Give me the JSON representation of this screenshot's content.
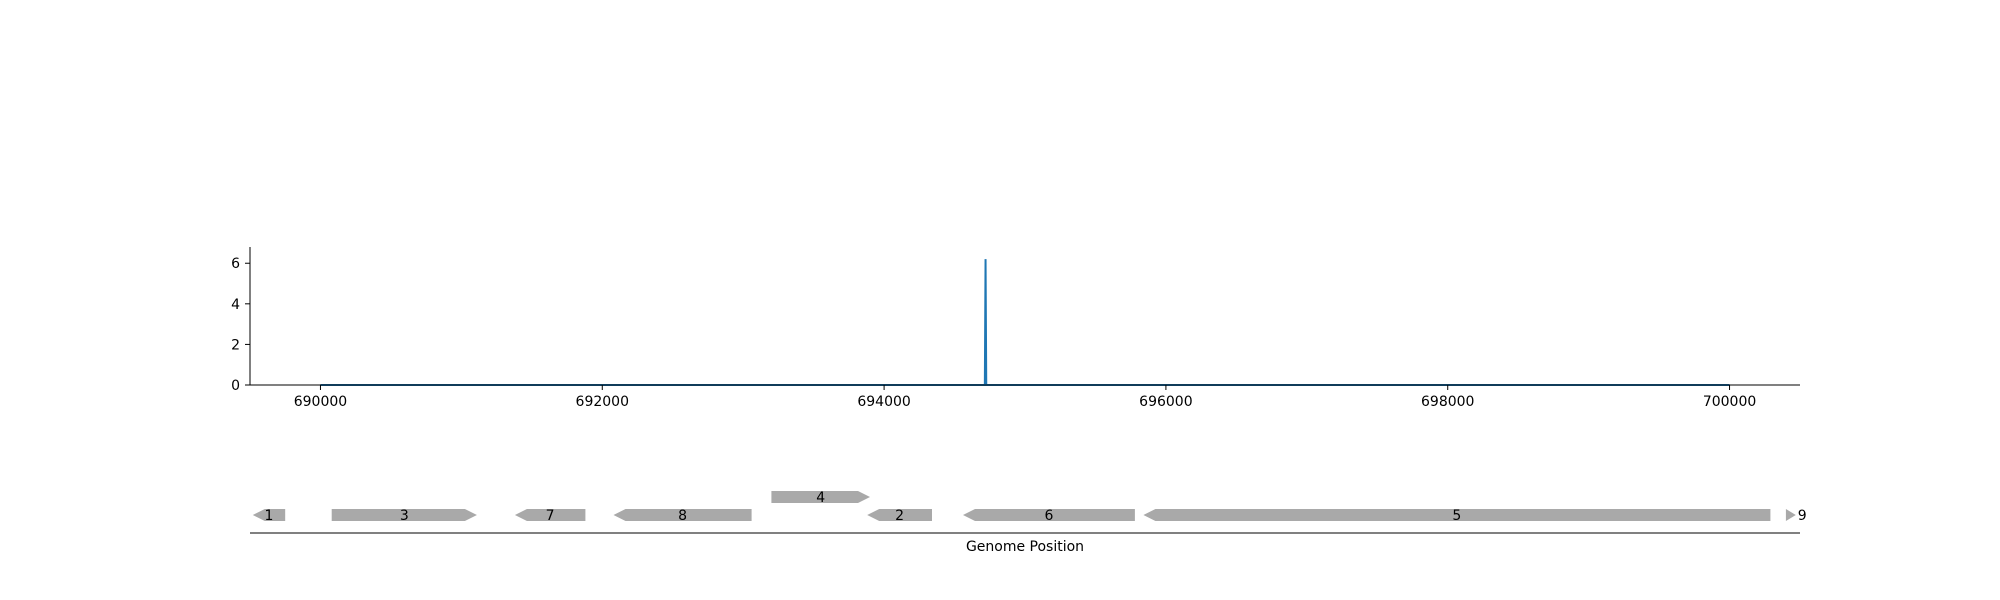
{
  "chart_data": [
    {
      "type": "line",
      "title": "",
      "xlabel": "",
      "ylabel": "",
      "xlim": [
        689500,
        700500
      ],
      "ylim": [
        0,
        6.8
      ],
      "x_ticks": [
        690000,
        692000,
        694000,
        696000,
        698000,
        700000
      ],
      "x_tick_labels": [
        "690000",
        "692000",
        "694000",
        "696000",
        "698000",
        "700000"
      ],
      "y_ticks": [
        0,
        2,
        4,
        6
      ],
      "y_tick_labels": [
        "0",
        "2",
        "4",
        "6"
      ],
      "grid": false,
      "series": [
        {
          "color": "#1f77b4",
          "points": [
            [
              690000,
              0
            ],
            [
              694715,
              0
            ],
            [
              694720,
              6.2
            ],
            [
              694725,
              0
            ],
            [
              700000,
              0
            ]
          ]
        }
      ]
    },
    {
      "type": "gene-track",
      "xlabel": "Genome Position",
      "xlim": [
        689500,
        700500
      ],
      "feature_color": "#a9a9a9",
      "features": [
        {
          "label": "1",
          "start": 689520,
          "end": 689750,
          "strand": "-",
          "row": 0
        },
        {
          "label": "3",
          "start": 690080,
          "end": 691110,
          "strand": "+",
          "row": 0
        },
        {
          "label": "7",
          "start": 691380,
          "end": 691880,
          "strand": "-",
          "row": 0
        },
        {
          "label": "8",
          "start": 692080,
          "end": 693060,
          "strand": "-",
          "row": 0
        },
        {
          "label": "4",
          "start": 693200,
          "end": 693900,
          "strand": "+",
          "row": 1
        },
        {
          "label": "2",
          "start": 693880,
          "end": 694340,
          "strand": "-",
          "row": 0
        },
        {
          "label": "6",
          "start": 694560,
          "end": 695780,
          "strand": "-",
          "row": 0
        },
        {
          "label": "5",
          "start": 695840,
          "end": 700290,
          "strand": "-",
          "row": 0
        },
        {
          "label": "9",
          "start": 700400,
          "end": 700470,
          "strand": "+",
          "row": 0
        }
      ]
    }
  ]
}
